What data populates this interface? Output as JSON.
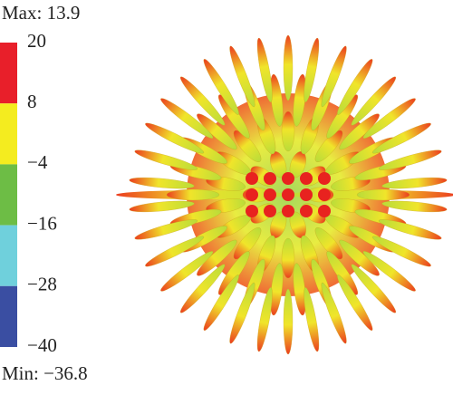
{
  "max_label": "Max: 13.9",
  "min_label": "Min: −36.8",
  "colorbar": {
    "ticks": [
      {
        "value": 20,
        "label": "20"
      },
      {
        "value": 8,
        "label": "8"
      },
      {
        "value": -4,
        "label": "−4"
      },
      {
        "value": -16,
        "label": "−16"
      },
      {
        "value": -28,
        "label": "−28"
      },
      {
        "value": -40,
        "label": "−40"
      }
    ],
    "colors": [
      "#e81f2a",
      "#f4ec1f",
      "#6dbd45",
      "#6fd0dc",
      "#3a4ea2"
    ]
  }
}
